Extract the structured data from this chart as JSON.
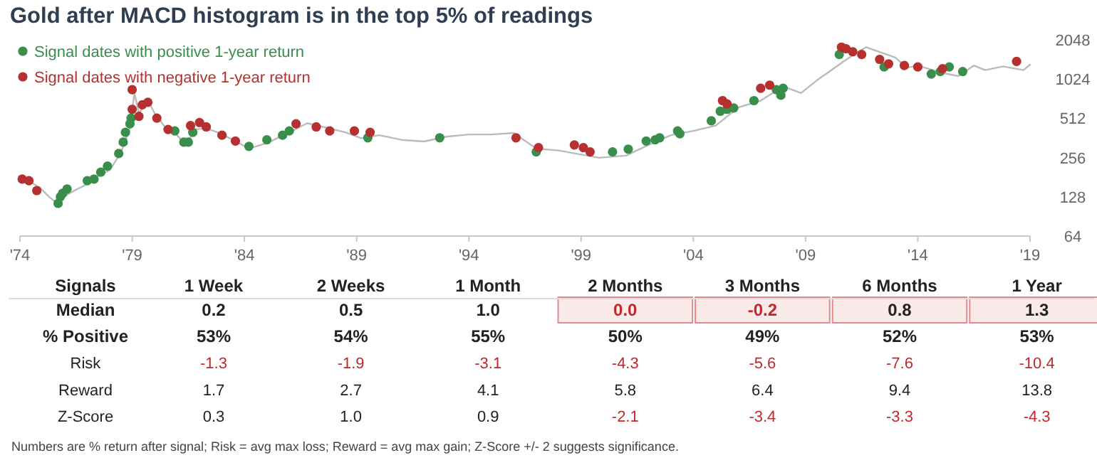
{
  "chart_data": [
    {
      "type": "line",
      "title": "Gold after MACD histogram is in the top 5% of readings",
      "log": "y",
      "legend": "top left",
      "grid": false,
      "xlim": [
        1974,
        2019
      ],
      "ylim": [
        64,
        2048
      ],
      "xticks": [
        {
          "value": 1974,
          "label": "'74"
        },
        {
          "value": 1979,
          "label": "'79"
        },
        {
          "value": 1984,
          "label": "'84"
        },
        {
          "value": 1989,
          "label": "'89"
        },
        {
          "value": 1994,
          "label": "'94"
        },
        {
          "value": 1999,
          "label": "'99"
        },
        {
          "value": 2004,
          "label": "'04"
        },
        {
          "value": 2009,
          "label": "'09"
        },
        {
          "value": 2014,
          "label": "'14"
        },
        {
          "value": 2019,
          "label": "'19"
        }
      ],
      "yticks": [
        64,
        128,
        256,
        512,
        1024,
        2048
      ],
      "series": [
        {
          "type": "line",
          "color": "#bbbbbb",
          "x": [
            1974.0,
            1974.5,
            1974.9,
            1975.3,
            1975.7,
            1976.0,
            1976.5,
            1977.0,
            1977.5,
            1978.0,
            1978.5,
            1978.9,
            1979.1,
            1979.3,
            1979.7,
            1980.0,
            1980.5,
            1981.0,
            1981.4,
            1981.8,
            1982.3,
            1982.8,
            1983.5,
            1984.2,
            1985.0,
            1986.0,
            1986.8,
            1987.5,
            1988.5,
            1989.2,
            1990.0,
            1991.0,
            1992.0,
            1993.0,
            1994.0,
            1995.0,
            1996.0,
            1997.0,
            1998.0,
            1999.0,
            1999.8,
            2001.0,
            2002.0,
            2003.0,
            2004.0,
            2005.0,
            2006.0,
            2007.0,
            2008.0,
            2008.8,
            2009.5,
            2010.0,
            2010.7,
            2011.2,
            2011.7,
            2012.3,
            2013.0,
            2013.5,
            2014.0,
            2015.0,
            2015.8,
            2016.5,
            2017.0,
            2017.8,
            2018.7,
            2019.0
          ],
          "values": [
            175,
            165,
            150,
            128,
            112,
            130,
            145,
            160,
            185,
            205,
            280,
            430,
            800,
            560,
            700,
            560,
            430,
            380,
            320,
            420,
            430,
            400,
            350,
            300,
            330,
            400,
            470,
            440,
            400,
            360,
            380,
            350,
            340,
            370,
            385,
            385,
            395,
            300,
            290,
            270,
            255,
            265,
            320,
            380,
            410,
            450,
            620,
            700,
            900,
            800,
            1000,
            1150,
            1400,
            1600,
            1800,
            1650,
            1500,
            1250,
            1300,
            1150,
            1080,
            1300,
            1200,
            1280,
            1200,
            1320
          ]
        },
        {
          "type": "scatter",
          "name": "Signal dates with positive 1-year return",
          "color": "#3a8e4c",
          "marker": "circle",
          "x": [
            1975.7,
            1975.8,
            1975.9,
            1976.1,
            1977.0,
            1977.3,
            1977.6,
            1977.9,
            1978.4,
            1978.6,
            1978.7,
            1978.9,
            1978.95,
            1980.9,
            1981.3,
            1981.5,
            1981.7,
            1984.2,
            1985.0,
            1985.7,
            1986.0,
            1989.5,
            1992.7,
            1997.0,
            2000.4,
            2001.1,
            2001.9,
            2002.3,
            2002.5,
            2003.3,
            2003.4,
            2004.8,
            2005.2,
            2005.5,
            2005.8,
            2006.7,
            2007.7,
            2007.9,
            2008.0,
            2010.5,
            2012.5,
            2014.6,
            2015.0,
            2015.4,
            2016.0
          ],
          "values": [
            114,
            128,
            136,
            147,
            170,
            175,
            198,
            220,
            275,
            336,
            400,
            465,
            514,
            410,
            336,
            336,
            400,
            312,
            350,
            380,
            410,
            363,
            363,
            283,
            283,
            297,
            343,
            350,
            363,
            410,
            390,
            490,
            580,
            600,
            615,
            700,
            850,
            770,
            870,
            1580,
            1270,
            1120,
            1170,
            1270,
            1170
          ]
        },
        {
          "type": "scatter",
          "name": "Signal dates with negative 1-year return",
          "color": "#b5302f",
          "marker": "circle",
          "x": [
            1974.1,
            1974.4,
            1974.75,
            1979.0,
            1979.0,
            1979.3,
            1979.45,
            1979.7,
            1980.1,
            1980.6,
            1981.6,
            1982.0,
            1982.3,
            1983.0,
            1983.6,
            1986.3,
            1987.2,
            1987.8,
            1988.9,
            1989.6,
            1996.1,
            1997.1,
            1998.7,
            1999.1,
            1999.4,
            2005.3,
            2005.5,
            2007.0,
            2007.4,
            2010.6,
            2010.8,
            2011.1,
            2011.5,
            2012.3,
            2012.7,
            2013.4,
            2014.0,
            2015.1,
            2018.4
          ],
          "values": [
            175,
            170,
            143,
            850,
            600,
            530,
            650,
            680,
            514,
            420,
            450,
            475,
            440,
            380,
            343,
            465,
            440,
            410,
            410,
            400,
            363,
            305,
            320,
            305,
            283,
            700,
            660,
            870,
            920,
            1800,
            1750,
            1660,
            1580,
            1450,
            1340,
            1300,
            1270,
            1230,
            1400
          ]
        }
      ]
    },
    {
      "type": "other",
      "ylabel": "Signals",
      "categories": [
        "1 Week",
        "2 Weeks",
        "1 Month",
        "2 Months",
        "3 Months",
        "6 Months",
        "1 Year"
      ],
      "y_categories": [
        "Median",
        "% Positive",
        "Risk",
        "Reward",
        "Z-Score"
      ],
      "cell_labels": [
        [
          "0.2",
          "0.5",
          "1.0",
          "0.0",
          "-0.2",
          "0.8",
          "1.3"
        ],
        [
          "53%",
          "54%",
          "55%",
          "50%",
          "49%",
          "52%",
          "53%"
        ],
        [
          "-1.3",
          "-1.9",
          "-3.1",
          "-4.3",
          "-5.6",
          "-7.6",
          "-10.4"
        ],
        [
          "1.7",
          "2.7",
          "4.1",
          "5.8",
          "6.4",
          "9.4",
          "13.8"
        ],
        [
          "0.3",
          "1.0",
          "0.9",
          "-2.1",
          "-3.4",
          "-3.3",
          "-4.3"
        ]
      ],
      "annotations": [
        "Numbers are % return after signal; Risk = avg max loss; Reward = avg max gain; Z-Score +/- 2 suggests significance."
      ]
    }
  ]
}
